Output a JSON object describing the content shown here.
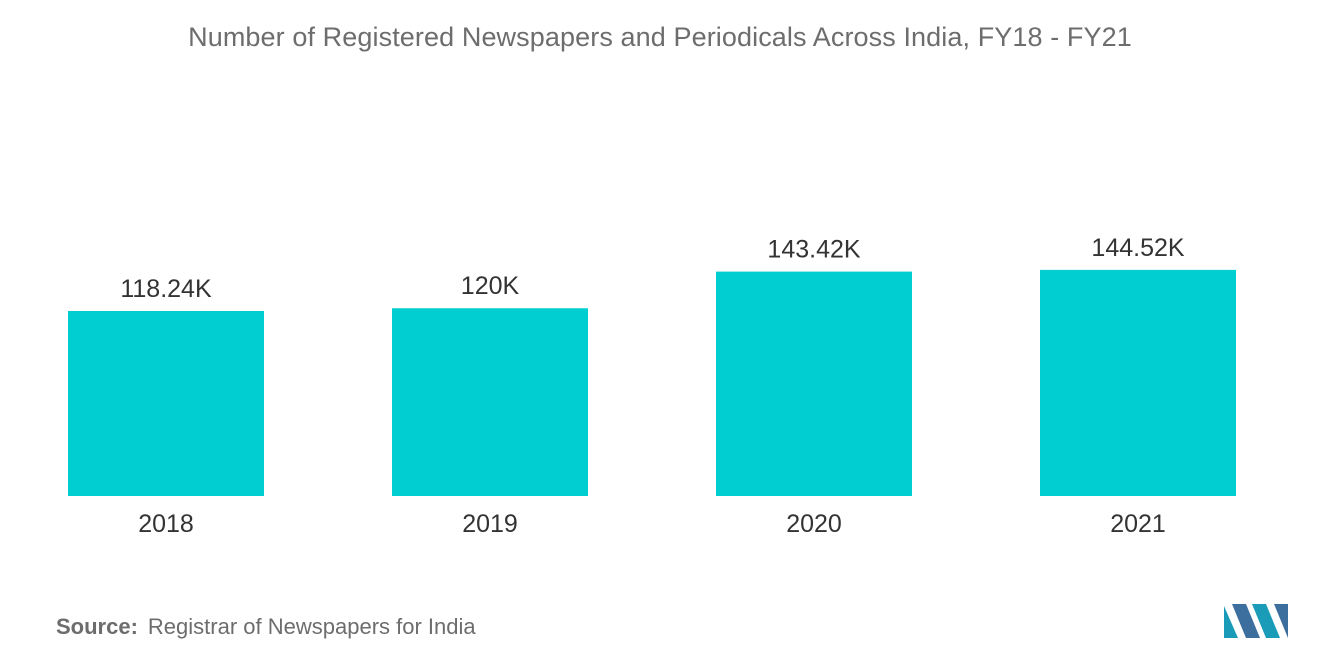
{
  "chart_data": {
    "type": "bar",
    "title": "Number of Registered Newspapers and Periodicals Across India, FY18 - FY21",
    "categories": [
      "2018",
      "2019",
      "2020",
      "2021"
    ],
    "values": [
      118.24,
      120,
      143.42,
      144.52
    ],
    "data_labels": [
      "118.24K",
      "120K",
      "143.42K",
      "144.52K"
    ],
    "xlabel": "",
    "ylabel": "",
    "ylim": [
      0,
      160
    ],
    "grid": false,
    "legend": "none",
    "bar_color": "#00ced1",
    "text_color": "#6d6d6d"
  },
  "source": {
    "label": "Source:",
    "text": "Registrar of Newspapers for India"
  },
  "logo": {
    "icon": "mordor-intelligence-logo-icon",
    "colors": [
      "#1a9bb8",
      "#3c6f9e"
    ]
  }
}
